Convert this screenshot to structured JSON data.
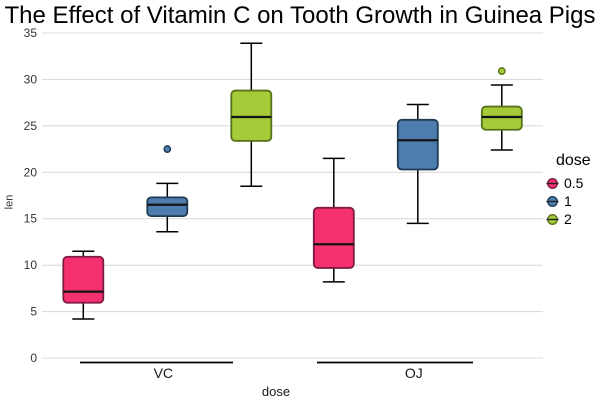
{
  "title": "The Effect of Vitamin C on Tooth Growth in Guinea Pigs",
  "chart_data": {
    "type": "boxplot",
    "title": "The Effect of Vitamin C on Tooth Growth in Guinea Pigs",
    "xlabel": "dose",
    "ylabel": "len",
    "ylim": [
      0,
      35
    ],
    "yticks": [
      0,
      5,
      10,
      15,
      20,
      25,
      30,
      35
    ],
    "grid": "horizontal-major-only",
    "gridline_color": "#dcdcdc",
    "groups": [
      "VC",
      "OJ"
    ],
    "legend": {
      "title": "dose",
      "position": "right"
    },
    "doses": [
      {
        "label": "0.5",
        "fill": "#f5306e",
        "stroke": "#7d1b45"
      },
      {
        "label": "1",
        "fill": "#4c7dad",
        "stroke": "#1e3a55"
      },
      {
        "label": "2",
        "fill": "#a5cb39",
        "stroke": "#55711a"
      }
    ],
    "boxes": [
      {
        "group": "VC",
        "dose": "0.5",
        "whisker_low": 4.2,
        "q1": 5.95,
        "median": 7.15,
        "q3": 10.9,
        "whisker_high": 11.5,
        "outliers": []
      },
      {
        "group": "VC",
        "dose": "1",
        "whisker_low": 13.6,
        "q1": 15.28,
        "median": 16.5,
        "q3": 17.3,
        "whisker_high": 18.8,
        "outliers": [
          22.5
        ]
      },
      {
        "group": "VC",
        "dose": "2",
        "whisker_low": 18.5,
        "q1": 23.38,
        "median": 25.95,
        "q3": 28.8,
        "whisker_high": 33.9,
        "outliers": []
      },
      {
        "group": "OJ",
        "dose": "0.5",
        "whisker_low": 8.2,
        "q1": 9.7,
        "median": 12.25,
        "q3": 16.18,
        "whisker_high": 21.5,
        "outliers": []
      },
      {
        "group": "OJ",
        "dose": "1",
        "whisker_low": 14.5,
        "q1": 20.3,
        "median": 23.45,
        "q3": 25.65,
        "whisker_high": 27.3,
        "outliers": []
      },
      {
        "group": "OJ",
        "dose": "2",
        "whisker_low": 22.4,
        "q1": 24.58,
        "median": 25.95,
        "q3": 27.08,
        "whisker_high": 29.4,
        "outliers": [
          30.9
        ]
      }
    ]
  }
}
